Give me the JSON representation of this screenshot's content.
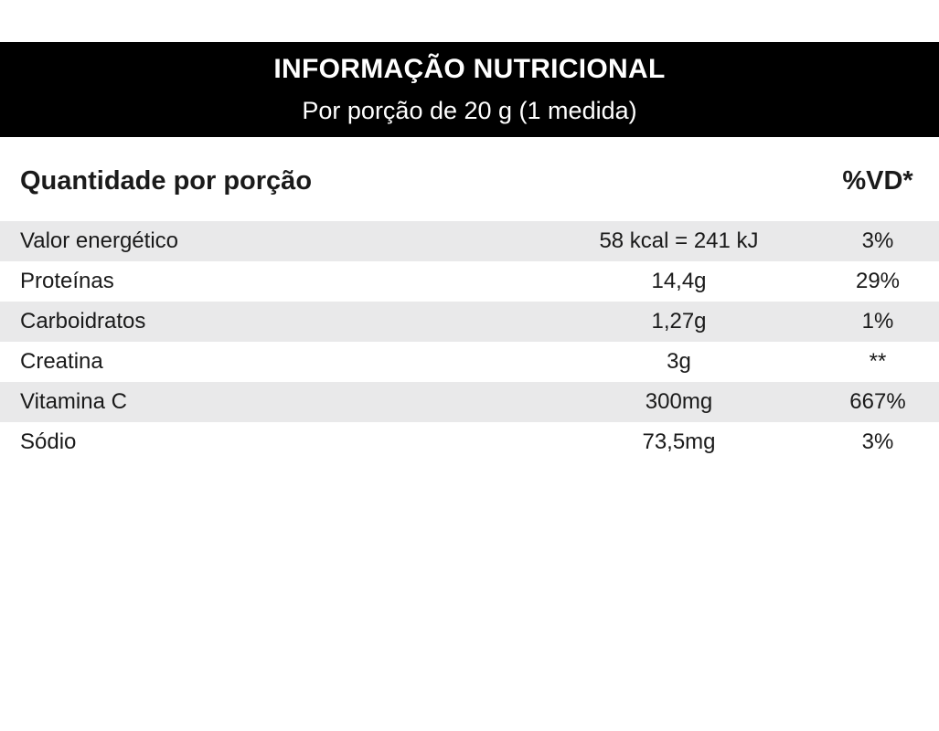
{
  "header": {
    "title": "INFORMAÇÃO NUTRICIONAL",
    "subtitle": "Por porção de 20 g (1 medida)"
  },
  "columns": {
    "quantity_heading": "Quantidade por porção",
    "dv_heading": "%VD*"
  },
  "rows": [
    {
      "name": "Valor energético",
      "amount": "58 kcal = 241 kJ",
      "dv": "3%"
    },
    {
      "name": "Proteínas",
      "amount": "14,4g",
      "dv": "29%"
    },
    {
      "name": "Carboidratos",
      "amount": "1,27g",
      "dv": "1%"
    },
    {
      "name": "Creatina",
      "amount": "3g",
      "dv": "**"
    },
    {
      "name": "Vitamina C",
      "amount": "300mg",
      "dv": "667%"
    },
    {
      "name": "Sódio",
      "amount": "73,5mg",
      "dv": "3%"
    }
  ]
}
